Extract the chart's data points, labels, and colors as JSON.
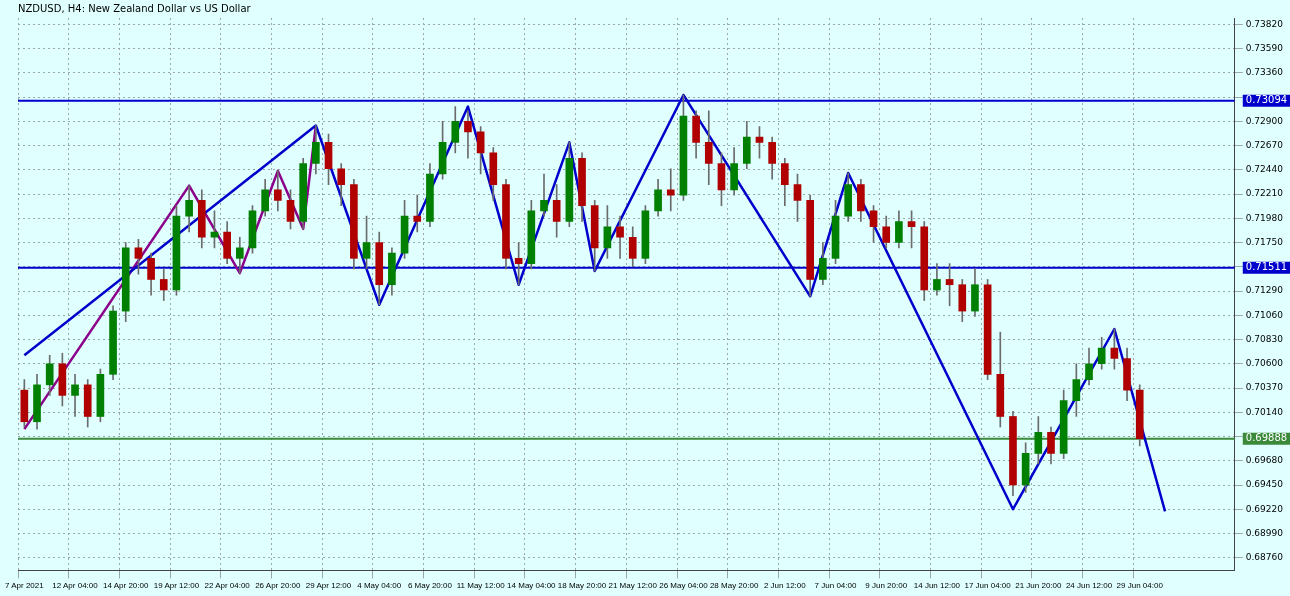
{
  "chart_data": {
    "type": "candlestick",
    "title": "NZDUSD, H4: New Zealand Dollar vs US Dollar",
    "categories": [
      "7 Apr 2021",
      null,
      null,
      null,
      "12 Apr 04:00",
      null,
      null,
      null,
      "14 Apr 20:00",
      null,
      null,
      null,
      "19 Apr 12:00",
      null,
      null,
      null,
      "22 Apr 04:00",
      null,
      null,
      null,
      "26 Apr 20:00",
      null,
      null,
      null,
      "29 Apr 12:00",
      null,
      null,
      null,
      "4 May 04:00",
      null,
      null,
      null,
      "6 May 20:00",
      null,
      null,
      null,
      "11 May 12:00",
      null,
      null,
      null,
      "14 May 04:00",
      null,
      null,
      null,
      "18 May 20:00",
      null,
      null,
      null,
      "21 May 12:00",
      null,
      null,
      null,
      "26 May 04:00",
      null,
      null,
      null,
      "28 May 20:00",
      null,
      null,
      null,
      "2 Jun 12:00",
      null,
      null,
      null,
      "7 Jun 04:00",
      null,
      null,
      null,
      "9 Jun 20:00",
      null,
      null,
      null,
      "14 Jun 12:00",
      null,
      null,
      null,
      "17 Jun 04:00",
      null,
      null,
      null,
      "21 Jun 20:00",
      null,
      null,
      null,
      "24 Jun 12:00",
      null,
      null,
      null,
      "29 Jun 04:00",
      null,
      null,
      null,
      null,
      null,
      null,
      null
    ],
    "ohlc": [
      [
        0.7035,
        0.7045,
        0.7,
        0.7005
      ],
      [
        0.7005,
        0.705,
        0.6998,
        0.704
      ],
      [
        0.704,
        0.7068,
        0.703,
        0.706
      ],
      [
        0.706,
        0.707,
        0.702,
        0.703
      ],
      [
        0.703,
        0.705,
        0.701,
        0.704
      ],
      [
        0.704,
        0.7045,
        0.7,
        0.701
      ],
      [
        0.701,
        0.7055,
        0.7005,
        0.705
      ],
      [
        0.705,
        0.7115,
        0.7045,
        0.711
      ],
      [
        0.711,
        0.7175,
        0.71,
        0.717
      ],
      [
        0.717,
        0.7178,
        0.7145,
        0.716
      ],
      [
        0.716,
        0.7165,
        0.7125,
        0.714
      ],
      [
        0.714,
        0.715,
        0.712,
        0.713
      ],
      [
        0.713,
        0.721,
        0.7125,
        0.72
      ],
      [
        0.72,
        0.7229,
        0.7185,
        0.7215
      ],
      [
        0.7215,
        0.7225,
        0.717,
        0.718
      ],
      [
        0.718,
        0.7205,
        0.717,
        0.7185
      ],
      [
        0.7185,
        0.7195,
        0.7155,
        0.716
      ],
      [
        0.716,
        0.718,
        0.7146,
        0.717
      ],
      [
        0.717,
        0.721,
        0.7165,
        0.7205
      ],
      [
        0.7205,
        0.7235,
        0.72,
        0.7225
      ],
      [
        0.7225,
        0.7243,
        0.7205,
        0.7215
      ],
      [
        0.7215,
        0.7225,
        0.7188,
        0.7195
      ],
      [
        0.7195,
        0.7255,
        0.7188,
        0.725
      ],
      [
        0.725,
        0.7286,
        0.724,
        0.727
      ],
      [
        0.727,
        0.7278,
        0.723,
        0.7245
      ],
      [
        0.7245,
        0.725,
        0.721,
        0.723
      ],
      [
        0.723,
        0.7235,
        0.715,
        0.716
      ],
      [
        0.716,
        0.72,
        0.715,
        0.7175
      ],
      [
        0.7175,
        0.7185,
        0.7116,
        0.7135
      ],
      [
        0.7135,
        0.717,
        0.7125,
        0.7165
      ],
      [
        0.7165,
        0.7215,
        0.716,
        0.72
      ],
      [
        0.72,
        0.722,
        0.7185,
        0.7195
      ],
      [
        0.7195,
        0.725,
        0.719,
        0.724
      ],
      [
        0.724,
        0.729,
        0.7235,
        0.727
      ],
      [
        0.727,
        0.7304,
        0.726,
        0.729
      ],
      [
        0.729,
        0.73,
        0.7255,
        0.728
      ],
      [
        0.728,
        0.7285,
        0.724,
        0.726
      ],
      [
        0.726,
        0.7265,
        0.7215,
        0.723
      ],
      [
        0.723,
        0.7235,
        0.715,
        0.716
      ],
      [
        0.716,
        0.7175,
        0.7135,
        0.7155
      ],
      [
        0.7155,
        0.7215,
        0.715,
        0.7205
      ],
      [
        0.7205,
        0.724,
        0.72,
        0.7215
      ],
      [
        0.7215,
        0.723,
        0.718,
        0.7195
      ],
      [
        0.7195,
        0.727,
        0.719,
        0.7255
      ],
      [
        0.7255,
        0.726,
        0.7195,
        0.721
      ],
      [
        0.721,
        0.7215,
        0.7148,
        0.717
      ],
      [
        0.717,
        0.721,
        0.716,
        0.719
      ],
      [
        0.719,
        0.72,
        0.716,
        0.718
      ],
      [
        0.718,
        0.719,
        0.7152,
        0.716
      ],
      [
        0.716,
        0.721,
        0.7155,
        0.7205
      ],
      [
        0.7205,
        0.7235,
        0.72,
        0.7225
      ],
      [
        0.7225,
        0.7245,
        0.7205,
        0.722
      ],
      [
        0.722,
        0.7315,
        0.7215,
        0.7295
      ],
      [
        0.7295,
        0.73,
        0.7255,
        0.727
      ],
      [
        0.727,
        0.73,
        0.723,
        0.725
      ],
      [
        0.725,
        0.726,
        0.721,
        0.7225
      ],
      [
        0.7225,
        0.7265,
        0.722,
        0.725
      ],
      [
        0.725,
        0.729,
        0.7245,
        0.7275
      ],
      [
        0.7275,
        0.7285,
        0.7255,
        0.727
      ],
      [
        0.727,
        0.7275,
        0.7235,
        0.725
      ],
      [
        0.725,
        0.7255,
        0.721,
        0.723
      ],
      [
        0.723,
        0.724,
        0.7195,
        0.7215
      ],
      [
        0.7215,
        0.722,
        0.7124,
        0.714
      ],
      [
        0.714,
        0.7175,
        0.7135,
        0.716
      ],
      [
        0.716,
        0.7215,
        0.7155,
        0.72
      ],
      [
        0.72,
        0.7241,
        0.7195,
        0.723
      ],
      [
        0.723,
        0.7235,
        0.7195,
        0.7205
      ],
      [
        0.7205,
        0.721,
        0.7175,
        0.719
      ],
      [
        0.719,
        0.72,
        0.717,
        0.7175
      ],
      [
        0.7175,
        0.7205,
        0.717,
        0.7195
      ],
      [
        0.7195,
        0.7205,
        0.717,
        0.719
      ],
      [
        0.719,
        0.7195,
        0.712,
        0.713
      ],
      [
        0.713,
        0.7155,
        0.7125,
        0.714
      ],
      [
        0.714,
        0.7155,
        0.7115,
        0.7135
      ],
      [
        0.7135,
        0.714,
        0.71,
        0.711
      ],
      [
        0.711,
        0.715,
        0.7105,
        0.7135
      ],
      [
        0.7135,
        0.714,
        0.7045,
        0.705
      ],
      [
        0.705,
        0.709,
        0.7,
        0.701
      ],
      [
        0.701,
        0.7015,
        0.6935,
        0.6945
      ],
      [
        0.6945,
        0.6985,
        0.6938,
        0.6975
      ],
      [
        0.6975,
        0.701,
        0.6965,
        0.6995
      ],
      [
        0.6995,
        0.7,
        0.6965,
        0.6975
      ],
      [
        0.6975,
        0.7035,
        0.697,
        0.7025
      ],
      [
        0.7025,
        0.706,
        0.701,
        0.7045
      ],
      [
        0.7045,
        0.7075,
        0.704,
        0.706
      ],
      [
        0.706,
        0.7085,
        0.7055,
        0.7075
      ],
      [
        0.7075,
        0.7093,
        0.7055,
        0.7065
      ],
      [
        0.7065,
        0.7075,
        0.7025,
        0.7035
      ],
      [
        0.7035,
        0.704,
        0.6982,
        0.6989
      ],
      null,
      null,
      null,
      null,
      null,
      null,
      null
    ],
    "colors": [
      "#b00000",
      "#008000",
      "#008000",
      "#b00000",
      "#008000",
      "#b00000",
      "#008000",
      "#008000",
      "#008000",
      "#b00000",
      "#b00000",
      "#b00000",
      "#008000",
      "#008000",
      "#b00000",
      "#008000",
      "#b00000",
      "#008000",
      "#008000",
      "#008000",
      "#b00000",
      "#b00000",
      "#008000",
      "#008000",
      "#b00000",
      "#b00000",
      "#b00000",
      "#008000",
      "#b00000",
      "#008000",
      "#008000",
      "#b00000",
      "#008000",
      "#008000",
      "#008000",
      "#b00000",
      "#b00000",
      "#b00000",
      "#b00000",
      "#b00000",
      "#008000",
      "#008000",
      "#b00000",
      "#008000",
      "#b00000",
      "#b00000",
      "#008000",
      "#b00000",
      "#b00000",
      "#008000",
      "#008000",
      "#b00000",
      "#008000",
      "#b00000",
      "#b00000",
      "#b00000",
      "#008000",
      "#008000",
      "#b00000",
      "#b00000",
      "#b00000",
      "#b00000",
      "#b00000",
      "#008000",
      "#008000",
      "#008000",
      "#b00000",
      "#b00000",
      "#b00000",
      "#008000",
      "#b00000",
      "#b00000",
      "#008000",
      "#b00000",
      "#b00000",
      "#008000",
      "#b00000",
      "#b00000",
      "#b00000",
      "#008000",
      "#008000",
      "#b00000",
      "#008000",
      "#008000",
      "#008000",
      "#008000",
      "#b00000",
      "#b00000",
      "#b00000",
      null,
      null,
      null,
      null,
      null,
      null,
      null
    ],
    "series": [
      {
        "type": "line",
        "color": "#0000cc",
        "values": [
          0.7068,
          null,
          null,
          null,
          null,
          null,
          null,
          null,
          null,
          null,
          null,
          null,
          null,
          null,
          null,
          null,
          null,
          null,
          null,
          null,
          null,
          null,
          null,
          0.7286,
          null,
          null,
          null,
          null,
          0.7116,
          null,
          null,
          null,
          null,
          null,
          null,
          0.7304,
          null,
          null,
          null,
          0.7135,
          null,
          null,
          null,
          0.727,
          null,
          0.7148,
          null,
          null,
          null,
          null,
          null,
          null,
          0.7315,
          null,
          null,
          null,
          null,
          null,
          null,
          null,
          null,
          null,
          0.7124,
          null,
          null,
          0.7241,
          null,
          null,
          null,
          null,
          null,
          null,
          null,
          null,
          null,
          null,
          null,
          null,
          0.6922,
          null,
          null,
          null,
          null,
          null,
          null,
          null,
          0.7093,
          null,
          null,
          null,
          0.692,
          null,
          null,
          null,
          null,
          null
        ]
      },
      {
        "type": "line",
        "color": "#8b008b",
        "values": [
          0.6998,
          null,
          null,
          null,
          null,
          null,
          null,
          null,
          null,
          null,
          null,
          null,
          null,
          0.7229,
          null,
          null,
          null,
          0.7146,
          null,
          null,
          0.7243,
          null,
          0.7188,
          0.7286,
          null,
          null,
          null,
          null,
          null,
          null,
          null,
          null,
          null,
          null,
          null,
          null,
          null,
          null,
          null,
          null,
          null,
          null,
          null,
          null,
          null,
          null,
          null,
          null,
          null,
          null,
          null,
          null,
          null,
          null,
          null,
          null,
          null,
          null,
          null,
          null,
          null,
          null,
          null,
          null,
          null,
          null,
          null,
          null,
          null,
          null,
          null,
          null,
          null,
          null,
          null,
          null,
          null,
          null,
          null,
          null,
          null,
          null,
          null,
          null,
          null,
          null,
          null,
          null,
          null,
          null,
          null,
          null,
          null,
          null,
          null,
          null
        ]
      }
    ],
    "ylim": [
      0.6864,
      0.7388
    ],
    "yticks": [
      {
        "value": 0.7382,
        "label": "0.73820"
      },
      {
        "value": 0.7359,
        "label": "0.73590"
      },
      {
        "value": 0.7336,
        "label": "0.73360"
      },
      {
        "value": 0.7313,
        "label": null
      },
      {
        "value": 0.729,
        "label": "0.72900"
      },
      {
        "value": 0.7267,
        "label": "0.72670"
      },
      {
        "value": 0.7244,
        "label": "0.72440"
      },
      {
        "value": 0.7221,
        "label": "0.72210"
      },
      {
        "value": 0.7198,
        "label": "0.71980"
      },
      {
        "value": 0.7175,
        "label": "0.71750"
      },
      {
        "value": 0.7152,
        "label": null
      },
      {
        "value": 0.7129,
        "label": "0.71290"
      },
      {
        "value": 0.7106,
        "label": "0.71060"
      },
      {
        "value": 0.7083,
        "label": "0.70830"
      },
      {
        "value": 0.706,
        "label": "0.70600"
      },
      {
        "value": 0.7037,
        "label": "0.70370"
      },
      {
        "value": 0.7014,
        "label": "0.70140"
      },
      {
        "value": 0.6991,
        "label": null
      },
      {
        "value": 0.6968,
        "label": "0.69680"
      },
      {
        "value": 0.6945,
        "label": "0.69450"
      },
      {
        "value": 0.6922,
        "label": "0.69220"
      },
      {
        "value": 0.6899,
        "label": "0.68990"
      },
      {
        "value": 0.6876,
        "label": "0.68760"
      }
    ],
    "ref_lines": [
      {
        "axis": "y",
        "value": 0.73094,
        "label": "0.73094",
        "color": "#0000cc"
      },
      {
        "axis": "y",
        "value": 0.71511,
        "label": "0.71511",
        "color": "#0000cc"
      },
      {
        "axis": "y",
        "value": 0.69888,
        "label": "0.69888",
        "color": "#3a8a3a"
      }
    ],
    "grid": true,
    "legend": false,
    "marker": "none"
  }
}
